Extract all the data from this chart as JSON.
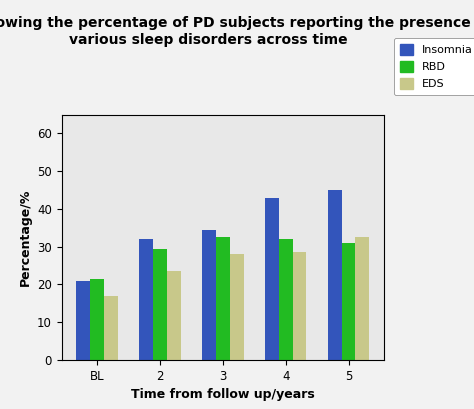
{
  "title": "Graph showing the percentage of PD subjects reporting the presence of\nvarious sleep disorders across time",
  "xlabel": "Time from follow up/years",
  "ylabel": "Percentage/%",
  "categories": [
    "BL",
    "2",
    "3",
    "4",
    "5"
  ],
  "series": {
    "Insomnia": [
      21,
      32,
      34.5,
      43,
      45
    ],
    "RBD": [
      21.5,
      29.5,
      32.5,
      32,
      31
    ],
    "EDS": [
      17,
      23.5,
      28,
      28.5,
      32.5
    ]
  },
  "colors": {
    "Insomnia": "#3355BB",
    "RBD": "#22BB22",
    "EDS": "#C8C88A"
  },
  "ylim": [
    0,
    65
  ],
  "yticks": [
    0,
    10,
    20,
    30,
    40,
    50,
    60
  ],
  "background_color": "#E8E8E8",
  "bar_width": 0.22,
  "title_fontsize": 10,
  "axis_label_fontsize": 9,
  "tick_fontsize": 8.5,
  "legend_fontsize": 8
}
